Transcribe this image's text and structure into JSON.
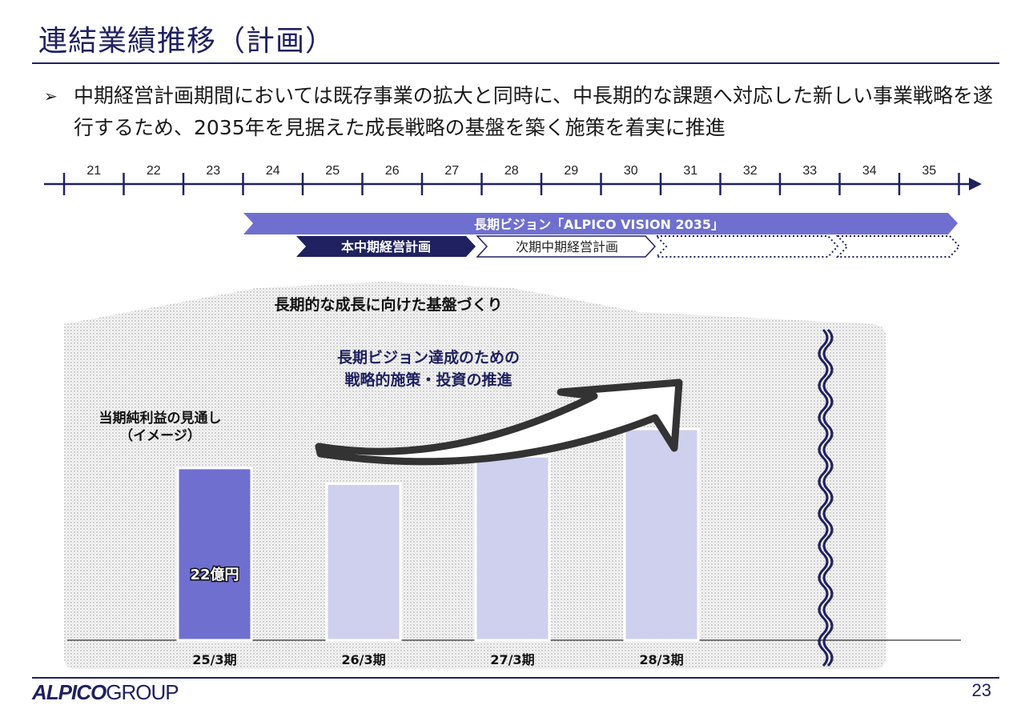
{
  "title": "連結業績推移（計画）",
  "bullet": {
    "mark": "➢",
    "text": "中期経営計画期間においては既存事業の拡大と同時に、中長期的な課題へ対応した新しい事業戦略を遂行するため、2035年を見据えた成長戦略の基盤を築く施策を着実に推進"
  },
  "timeline": {
    "years": [
      "21",
      "22",
      "23",
      "24",
      "25",
      "26",
      "27",
      "28",
      "29",
      "30",
      "31",
      "32",
      "33",
      "34",
      "35"
    ],
    "vision_label": "長期ビジョン「ALPICO VISION 2035」",
    "current_plan_label": "本中期経営計画",
    "next_plan_label": "次期中期経営計画"
  },
  "foundation_label": "長期的な成長に向けた基盤づくり",
  "strategy_label_line1": "長期ビジョン達成のための",
  "strategy_label_line2": "戦略的施策・投資の推進",
  "chart_label_line1": "当期純利益の見通し",
  "chart_label_line2": "（イメージ）",
  "colors": {
    "navy": "#1f2160",
    "accent": "#6f6fd0",
    "light_bar": "#cfcfee"
  },
  "chart_data": {
    "type": "bar",
    "categories": [
      "25/3期",
      "26/3期",
      "27/3期",
      "28/3期"
    ],
    "values": [
      22,
      20,
      23.5,
      27
    ],
    "data_labels": [
      "22億円",
      "",
      "",
      ""
    ],
    "ylim": [
      0,
      45
    ],
    "title": "",
    "xlabel": "",
    "ylabel": ""
  },
  "footer": {
    "logo_bold": "ALPICO",
    "logo_rest": "GROUP",
    "page_number": "23"
  }
}
